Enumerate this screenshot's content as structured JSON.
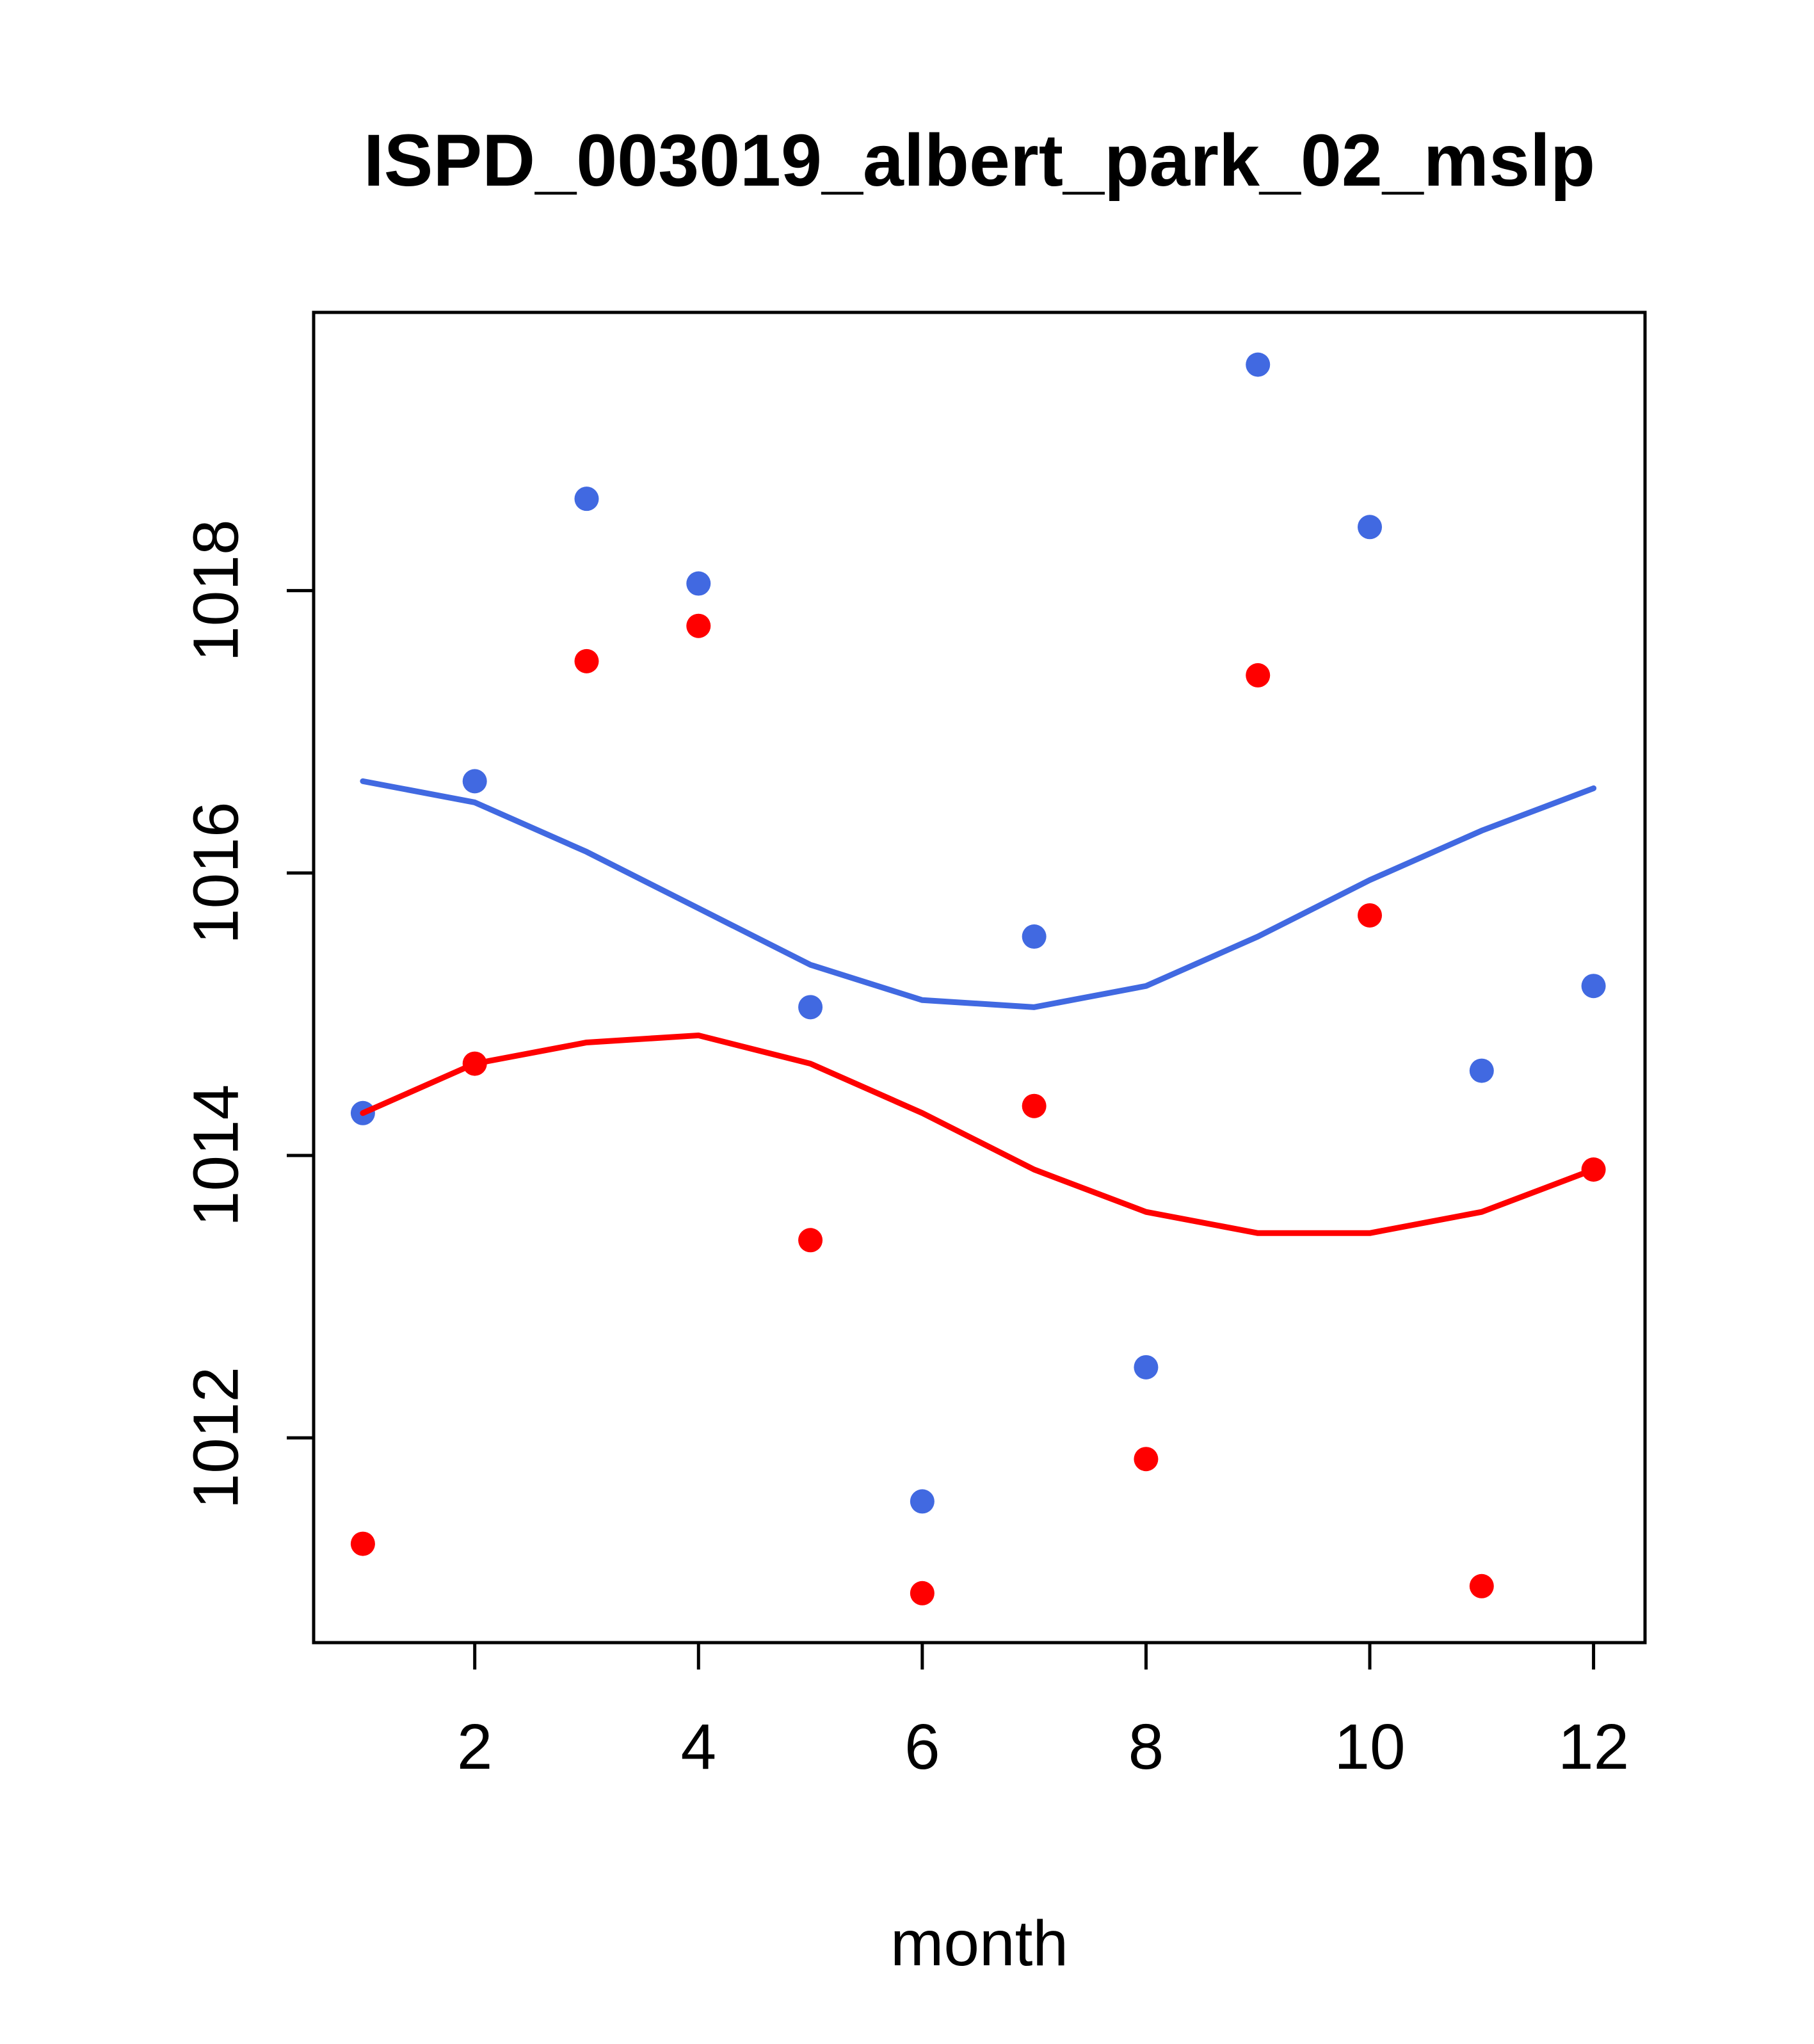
{
  "chart_data": {
    "type": "scatter",
    "title": "ISPD_003019_albert_park_02_mslp",
    "xlabel": "month",
    "ylabel": "",
    "xlim": [
      0.56,
      12.46
    ],
    "ylim": [
      1010.55,
      1019.97
    ],
    "x_ticks": [
      2,
      4,
      6,
      8,
      10,
      12
    ],
    "y_ticks": [
      1012,
      1014,
      1016,
      1018
    ],
    "grid": false,
    "legend": "none",
    "colors": {
      "series_blue": "#4169e1",
      "series_red": "#ff0000",
      "axis": "#000000"
    },
    "x": [
      1,
      2,
      3,
      4,
      5,
      6,
      7,
      8,
      9,
      10,
      11,
      12
    ],
    "series": [
      {
        "name": "blue-points",
        "kind": "points",
        "color": "#4169e1",
        "values": [
          1014.3,
          1016.65,
          1018.65,
          1018.05,
          1015.05,
          1011.55,
          1015.55,
          1012.5,
          1019.6,
          1018.45,
          1014.6,
          1015.2
        ]
      },
      {
        "name": "red-points",
        "kind": "points",
        "color": "#ff0000",
        "values": [
          1011.25,
          1014.65,
          1017.5,
          1017.75,
          1013.4,
          1010.9,
          1014.35,
          1011.85,
          1017.4,
          1015.7,
          1010.95,
          1013.9
        ]
      },
      {
        "name": "blue-smooth-line",
        "kind": "line",
        "color": "#4169e1",
        "values": [
          1016.65,
          1016.5,
          1016.15,
          1015.75,
          1015.35,
          1015.1,
          1015.05,
          1015.2,
          1015.55,
          1015.95,
          1016.3,
          1016.6
        ]
      },
      {
        "name": "red-smooth-line",
        "kind": "line",
        "color": "#ff0000",
        "values": [
          1014.3,
          1014.65,
          1014.8,
          1014.85,
          1014.65,
          1014.3,
          1013.9,
          1013.6,
          1013.45,
          1013.45,
          1013.6,
          1013.9
        ]
      }
    ]
  }
}
